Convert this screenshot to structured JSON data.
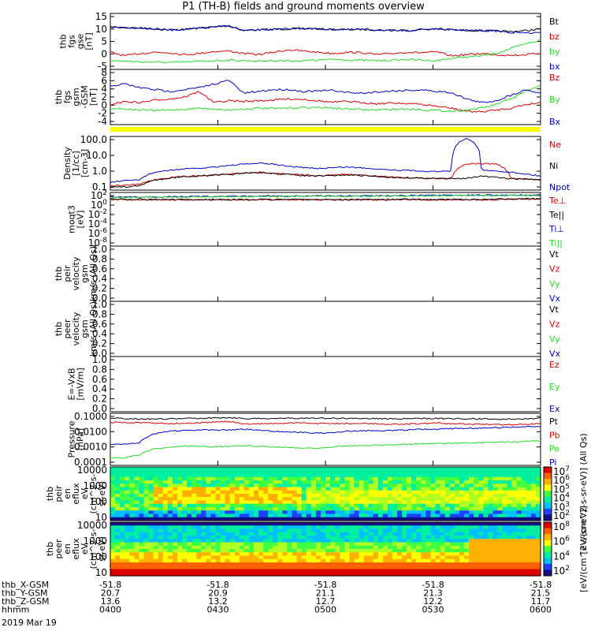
{
  "title": "P1 (TH-B) fields and ground moments overview",
  "colors": {
    "black": "#000000",
    "red": "#dd0000",
    "green": "#22dd22",
    "blue": "#0000cc",
    "yellow": "#ffff00"
  },
  "chart_data": [
    {
      "type": "line",
      "panel": "fgs_gse",
      "ylabel": [
        "thb",
        "fgs",
        "gse",
        "[nT]"
      ],
      "yticks": [
        "15",
        "10",
        "5",
        "0",
        "-5"
      ],
      "ylim": [
        -6,
        16
      ],
      "legend": [
        "Bt",
        "bz",
        "by",
        "bx"
      ],
      "series": [
        {
          "name": "Bt",
          "color": "#000000",
          "values": [
            11,
            10.8,
            10.6,
            10.2,
            9.8,
            10,
            10.5,
            11,
            11.5,
            9.5,
            9.8,
            10,
            10.2,
            10.4,
            10.2,
            10,
            9.9,
            10,
            9.8,
            9.5,
            9.5,
            10,
            10.2,
            9.8,
            9.6,
            9.5,
            9.3,
            9.1,
            9.5,
            10.2
          ]
        },
        {
          "name": "bz",
          "color": "#dd0000",
          "values": [
            0.5,
            -1,
            0,
            0.5,
            0.3,
            -0.5,
            0,
            0.8,
            1,
            0,
            -0.5,
            0.5,
            1.5,
            1,
            0.5,
            0,
            0.5,
            0.3,
            -0.5,
            0,
            0.5,
            0.3,
            0.6,
            -1,
            -0.5,
            0,
            -0.5,
            -0.8,
            -0.5,
            0
          ]
        },
        {
          "name": "by",
          "color": "#22dd22",
          "values": [
            -3,
            -3.2,
            -3.5,
            -3.6,
            -3.8,
            -3.6,
            -3.3,
            -3,
            -2.8,
            -3,
            -3.2,
            -3,
            -3.1,
            -3,
            -2.8,
            -2.5,
            -2.7,
            -2.9,
            -3,
            -2.8,
            -2.5,
            -2.8,
            -3,
            -2,
            -1.5,
            -1,
            0,
            2,
            4,
            5.5
          ]
        },
        {
          "name": "bx",
          "color": "#0000cc",
          "values": [
            11,
            10.8,
            10.6,
            10.2,
            9.8,
            10,
            10.5,
            11,
            11.5,
            9.5,
            9.8,
            10,
            10.2,
            10.4,
            10.2,
            10,
            9.9,
            10,
            9.8,
            9.5,
            9.5,
            10,
            10.2,
            9.8,
            9.6,
            9.5,
            9.3,
            8.8,
            8.5,
            8.5
          ]
        }
      ]
    },
    {
      "type": "line",
      "panel": "fgs_gsm",
      "ylabel": [
        "thb",
        "fgs",
        "gsm",
        "-GSM",
        "[nT]"
      ],
      "yticks": [
        "8",
        "6",
        "4",
        "2",
        "0",
        "-2",
        "-4"
      ],
      "ylim": [
        -5,
        9
      ],
      "legend": [
        "Bz",
        "By",
        "Bx"
      ],
      "series": [
        {
          "name": "Bz",
          "color": "#dd0000",
          "values": [
            0,
            0.8,
            0.5,
            1.2,
            1.5,
            2,
            3.5,
            0.5,
            1,
            0.8,
            1,
            1.2,
            1.5,
            1.4,
            1,
            0.6,
            0.8,
            0.5,
            0.2,
            0.4,
            0.3,
            0,
            -0.5,
            -1,
            -1.8,
            -2,
            -1.5,
            -1,
            0,
            0.5
          ]
        },
        {
          "name": "By",
          "color": "#22dd22",
          "values": [
            -1,
            -1.2,
            -1.5,
            -1.6,
            -1.5,
            -1.3,
            -1,
            -1.2,
            -1.5,
            -1.2,
            -1,
            -1.1,
            -1,
            -0.8,
            -0.8,
            -1,
            -1.2,
            -1.4,
            -1.5,
            -1.3,
            -1.2,
            -1.4,
            -1.6,
            -1.8,
            -1.5,
            -1,
            0,
            1.5,
            3.5,
            5
          ]
        },
        {
          "name": "Bx",
          "color": "#0000cc",
          "values": [
            5,
            5.5,
            4.5,
            4,
            3.5,
            4,
            4.5,
            5.5,
            6.5,
            3,
            3.5,
            4,
            4,
            3.5,
            3.6,
            3.8,
            3.2,
            3,
            3.4,
            3.6,
            3.8,
            3.9,
            3.5,
            3.2,
            1.5,
            0.5,
            1,
            2.5,
            4,
            3
          ]
        }
      ]
    },
    {
      "type": "line",
      "panel": "density",
      "log": true,
      "ylabel": [
        "Density",
        "[1/cc]",
        "[cm-3]"
      ],
      "yticks": [
        "100.0",
        "10.0",
        "1.0",
        "0.1"
      ],
      "ylim": [
        0.08,
        150
      ],
      "legend": [
        "Ne",
        "Ni",
        "Npot"
      ],
      "series": [
        {
          "name": "Ne",
          "color": "#dd0000",
          "values": [
            0.12,
            0.13,
            0.15,
            0.3,
            0.4,
            0.5,
            0.55,
            0.6,
            0.7,
            0.8,
            0.9,
            0.8,
            0.7,
            0.6,
            0.55,
            0.6,
            0.65,
            0.6,
            0.5,
            0.45,
            0.4,
            0.38,
            0.35,
            0.36,
            3.2,
            3.2,
            3.2,
            0.35,
            0.33,
            0.3
          ]
        },
        {
          "name": "Ni",
          "color": "#000000",
          "values": [
            0.1,
            0.1,
            0.12,
            0.28,
            0.38,
            0.48,
            0.5,
            0.58,
            0.65,
            0.75,
            0.85,
            0.75,
            0.65,
            0.55,
            0.5,
            0.55,
            0.6,
            0.55,
            0.48,
            0.42,
            0.4,
            0.38,
            0.35,
            0.36,
            0.38,
            0.5,
            0.42,
            0.34,
            0.32,
            0.3
          ]
        },
        {
          "name": "Npot",
          "color": "#0000cc",
          "values": [
            0.2,
            0.25,
            0.3,
            0.9,
            1.2,
            1.5,
            1.6,
            2,
            2.5,
            3,
            3.5,
            3,
            2.2,
            1.8,
            1.6,
            1.8,
            2,
            1.7,
            1.5,
            1.3,
            1.2,
            1.1,
            1,
            1.1,
            150,
            1.2,
            1.1,
            0.9,
            0.7,
            0.5
          ]
        }
      ]
    },
    {
      "type": "line",
      "panel": "temperature",
      "log": true,
      "ylabel": [
        "moqt3",
        "[eV]"
      ],
      "yticks": [
        "10^2",
        "10^0",
        "10^-2",
        "10^-4",
        "10^-6",
        "10^-8"
      ],
      "ylim": [
        -9,
        4
      ],
      "legend": [
        "Te⊥",
        "Te||",
        "Ti⊥",
        "Ti||"
      ],
      "series": [
        {
          "name": "Te⊥",
          "color": "#dd0000",
          "values": [
            2.6,
            2.6,
            2.55,
            2.5,
            2.5,
            2.45,
            2.45,
            2.5,
            2.5,
            2.45,
            2.5,
            2.5,
            2.55,
            2.5,
            2.5,
            2.5,
            2.45,
            2.5,
            2.5,
            2.5,
            2.55,
            2.5,
            2.5,
            2.5,
            2.5,
            2.5,
            2.55,
            2.7,
            2.7,
            2.7
          ]
        },
        {
          "name": "Te||",
          "color": "#000000",
          "values": [
            2.7,
            2.7,
            2.65,
            2.6,
            2.6,
            2.55,
            2.55,
            2.6,
            2.6,
            2.55,
            2.6,
            2.6,
            2.65,
            2.6,
            2.6,
            2.6,
            2.55,
            2.6,
            2.6,
            2.6,
            2.65,
            2.6,
            2.6,
            2.6,
            2.6,
            2.6,
            2.65,
            2.8,
            2.8,
            2.8
          ]
        },
        {
          "name": "Ti⊥",
          "color": "#0000cc",
          "values": [
            3.2,
            3.2,
            3.25,
            3.3,
            3.3,
            3.35,
            3.4,
            3.4,
            3.4,
            3.45,
            3.45,
            3.5,
            3.5,
            3.5,
            3.5,
            3.55,
            3.55,
            3.55,
            3.6,
            3.6,
            3.6,
            3.65,
            3.65,
            3.65,
            3.7,
            3.7,
            3.7,
            3.75,
            3.75,
            3.8
          ]
        },
        {
          "name": "Ti||",
          "color": "#22dd22",
          "values": [
            3.1,
            3.1,
            3.15,
            3.2,
            3.2,
            3.25,
            3.3,
            3.3,
            3.3,
            3.35,
            3.35,
            3.4,
            3.4,
            3.4,
            3.4,
            3.45,
            3.45,
            3.45,
            3.5,
            3.5,
            3.5,
            3.55,
            3.55,
            3.55,
            3.6,
            3.6,
            3.6,
            3.65,
            3.65,
            3.7
          ]
        }
      ]
    },
    {
      "type": "line",
      "panel": "peir_velocity",
      "ylabel": [
        "thb",
        "peir",
        "velocity",
        "gsm",
        "km/s (All Qs)"
      ],
      "yticks": [
        "1.0",
        "0.8",
        "0.6",
        "0.4",
        "0.2",
        "0.0"
      ],
      "ylim": [
        0,
        1
      ],
      "legend": [
        "Vt",
        "Vz",
        "Vy",
        "Vx"
      ],
      "series": []
    },
    {
      "type": "line",
      "panel": "peer_velocity",
      "ylabel": [
        "thb",
        "peer",
        "velocity",
        "gsm",
        "km/s (All Qs)"
      ],
      "yticks": [
        "1.0",
        "0.8",
        "0.6",
        "0.4",
        "0.2",
        "0.0"
      ],
      "ylim": [
        0,
        1
      ],
      "legend": [
        "Vt",
        "Vz",
        "Vy",
        "Vx"
      ],
      "series": []
    },
    {
      "type": "line",
      "panel": "efield",
      "ylabel": [
        "E=-VxB",
        "[mV/m]"
      ],
      "yticks": [
        "1.0",
        "0.8",
        "0.6",
        "0.4",
        "0.2",
        "0.0"
      ],
      "ylim": [
        0,
        1
      ],
      "legend": [
        "Ez",
        "Ey",
        "Ex"
      ],
      "series": []
    },
    {
      "type": "line",
      "panel": "pressure",
      "log": true,
      "ylabel": [
        "Pressure",
        "[nPa]"
      ],
      "yticks": [
        "0.1000",
        "0.0100",
        "0.0010",
        "0.0001"
      ],
      "ylim": [
        8e-05,
        0.15
      ],
      "legend": [
        "Pt",
        "Pb",
        "Pe",
        "Pi"
      ],
      "series": [
        {
          "name": "Pt",
          "color": "#000000",
          "values": [
            0.09,
            0.085,
            0.08,
            0.08,
            0.082,
            0.085,
            0.09,
            0.095,
            0.1,
            0.085,
            0.085,
            0.087,
            0.09,
            0.092,
            0.09,
            0.088,
            0.087,
            0.088,
            0.085,
            0.082,
            0.082,
            0.085,
            0.087,
            0.084,
            0.082,
            0.08,
            0.079,
            0.078,
            0.08,
            0.09
          ]
        },
        {
          "name": "Pb",
          "color": "#dd0000",
          "values": [
            0.048,
            0.046,
            0.044,
            0.042,
            0.04,
            0.042,
            0.045,
            0.049,
            0.053,
            0.036,
            0.038,
            0.04,
            0.042,
            0.043,
            0.041,
            0.04,
            0.039,
            0.04,
            0.038,
            0.036,
            0.036,
            0.04,
            0.042,
            0.038,
            0.037,
            0.036,
            0.034,
            0.033,
            0.036,
            0.041
          ]
        },
        {
          "name": "Pe",
          "color": "#22dd22",
          "values": [
            0.0002,
            0.0002,
            0.0003,
            0.0008,
            0.001,
            0.0012,
            0.0012,
            0.0011,
            0.0012,
            0.0013,
            0.0012,
            0.0011,
            0.001,
            0.0009,
            0.0009,
            0.0011,
            0.0013,
            0.0013,
            0.0014,
            0.0015,
            0.0016,
            0.0017,
            0.0018,
            0.0019,
            0.002,
            0.0021,
            0.0022,
            0.0023,
            0.0025,
            0.0028
          ]
        },
        {
          "name": "Pi",
          "color": "#0000cc",
          "values": [
            0.0015,
            0.0016,
            0.002,
            0.008,
            0.012,
            0.014,
            0.015,
            0.014,
            0.015,
            0.016,
            0.015,
            0.012,
            0.011,
            0.01,
            0.009,
            0.01,
            0.012,
            0.013,
            0.013,
            0.014,
            0.015,
            0.016,
            0.017,
            0.018,
            0.019,
            0.02,
            0.021,
            0.022,
            0.024,
            0.025
          ]
        }
      ]
    },
    {
      "type": "heatmap",
      "panel": "peir_en_eflux",
      "ylabel": [
        "thb",
        "peir",
        "en",
        "eflux",
        "eV",
        "(cm^2-s-",
        "sr-eV)"
      ],
      "yticks": [
        "10000",
        "1000",
        "100",
        "10"
      ],
      "colorbar_label": "[eV/(cm^2-s-sr-eV)] (All Qs)",
      "colorbar_ticks": [
        "10^7",
        "10^6",
        "10^5",
        "10^4",
        "10^3",
        "10^2"
      ]
    },
    {
      "type": "heatmap",
      "panel": "peer_en_eflux",
      "ylabel": [
        "thb",
        "peer",
        "en",
        "eflux",
        "eV",
        "(cm^2-s-",
        "sr-eV)"
      ],
      "yticks": [
        "10000",
        "1000",
        "100",
        "10"
      ],
      "colorbar_label": "[eV/(cm^2-s-sr-eV)]",
      "colorbar_ticks": [
        "10^8",
        "10^6",
        "10^4",
        "10^2"
      ]
    }
  ],
  "ephemeris": {
    "rows": [
      {
        "label": "thb_X-GSM",
        "values": [
          "-51.8",
          "-51.8",
          "-51.8",
          "-51.8",
          "-51.8"
        ]
      },
      {
        "label": "thb_Y-GSM",
        "values": [
          "20.7",
          "20.9",
          "21.1",
          "21.3",
          "21.5"
        ]
      },
      {
        "label": "thb_Z-GSM",
        "values": [
          "13.6",
          "13.2",
          "12.7",
          "12.2",
          "11.7"
        ]
      },
      {
        "label": "hhmm",
        "values": [
          "0400",
          "0430",
          "0500",
          "0530",
          "0600"
        ]
      }
    ],
    "date": "2019 Mar 19"
  }
}
